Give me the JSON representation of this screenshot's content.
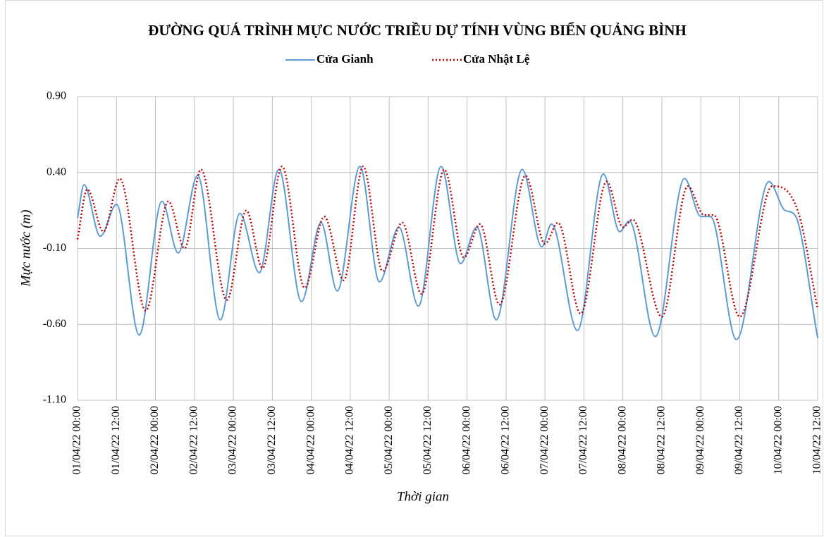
{
  "chart_data": {
    "type": "line",
    "title": "ĐƯỜNG QUÁ TRÌNH MỰC NƯỚC TRIỀU DỰ TÍNH VÙNG BIỂN QUẢNG BÌNH",
    "x_label": "Thời gian",
    "y_label": "Mực nước (m)",
    "xlim": [
      "01/04/22 00:00",
      "10/04/22 12:00"
    ],
    "xticks": [
      "01/04/22 00:00",
      "01/04/22 12:00",
      "02/04/22 00:00",
      "02/04/22 12:00",
      "03/04/22 00:00",
      "03/04/22 12:00",
      "04/04/22 00:00",
      "04/04/22 12:00",
      "05/04/22 00:00",
      "05/04/22 12:00",
      "06/04/22 00:00",
      "06/04/22 12:00",
      "07/04/22 00:00",
      "07/04/22 12:00",
      "08/04/22 00:00",
      "08/04/22 12:00",
      "09/04/22 00:00",
      "09/04/22 12:00",
      "10/04/22 00:00",
      "10/04/22 12:00"
    ],
    "ylim": [
      -1.1,
      0.9
    ],
    "yticks": [
      {
        "value": 0.9,
        "label": "0.90"
      },
      {
        "value": 0.4,
        "label": "0.40"
      },
      {
        "value": -0.1,
        "label": "-0.10"
      },
      {
        "value": -0.6,
        "label": "-0.60"
      },
      {
        "value": -1.1,
        "label": "-1.10"
      }
    ],
    "grid": true,
    "legend": "top",
    "series": [
      {
        "name": "Cửa Gianh",
        "color": "#5b9bd5",
        "style": "solid",
        "x": [
          "01/04/22 00:00",
          "01/04/22 02:00",
          "01/04/22 07:00",
          "01/04/22 12:00",
          "01/04/22 19:00",
          "02/04/22 02:00",
          "02/04/22 07:00",
          "02/04/22 13:00",
          "02/04/22 20:00",
          "03/04/22 02:00",
          "03/04/22 08:00",
          "03/04/22 14:00",
          "03/04/22 21:00",
          "04/04/22 03:00",
          "04/04/22 08:00",
          "04/04/22 15:00",
          "04/04/22 21:00",
          "05/04/22 03:00",
          "05/04/22 09:00",
          "05/04/22 16:00",
          "05/04/22 22:00",
          "06/04/22 03:00",
          "06/04/22 09:00",
          "06/04/22 17:00",
          "06/04/22 23:00",
          "07/04/22 02:00",
          "07/04/22 10:00",
          "07/04/22 18:00",
          "07/04/22 23:00",
          "08/04/22 02:00",
          "08/04/22 10:00",
          "08/04/22 19:00",
          "09/04/22 00:00",
          "09/04/22 03:00",
          "09/04/22 11:00",
          "09/04/22 21:00",
          "10/04/22 02:00",
          "10/04/22 05:00",
          "10/04/22 12:00"
        ],
        "values": [
          0.1,
          0.32,
          -0.02,
          0.19,
          -0.67,
          0.21,
          -0.13,
          0.38,
          -0.57,
          0.13,
          -0.26,
          0.42,
          -0.45,
          0.07,
          -0.38,
          0.44,
          -0.32,
          0.04,
          -0.48,
          0.44,
          -0.2,
          0.04,
          -0.57,
          0.42,
          -0.09,
          0.06,
          -0.64,
          0.39,
          0.01,
          0.08,
          -0.68,
          0.36,
          0.11,
          0.11,
          -0.7,
          0.34,
          0.15,
          0.12,
          -0.69
        ]
      },
      {
        "name": "Cửa Nhật Lệ",
        "color": "#c00000",
        "style": "dotted",
        "x": [
          "01/04/22 00:00",
          "01/04/22 03:00",
          "01/04/22 08:00",
          "01/04/22 13:00",
          "01/04/22 21:00",
          "02/04/22 04:00",
          "02/04/22 09:00",
          "02/04/22 14:00",
          "02/04/22 22:00",
          "03/04/22 04:00",
          "03/04/22 09:00",
          "03/04/22 15:00",
          "03/04/22 22:00",
          "04/04/22 04:00",
          "04/04/22 10:00",
          "04/04/22 16:00",
          "04/04/22 22:00",
          "05/04/22 04:00",
          "05/04/22 10:00",
          "05/04/22 17:00",
          "05/04/22 23:00",
          "06/04/22 04:00",
          "06/04/22 10:00",
          "06/04/22 18:00",
          "07/04/22 00:00",
          "07/04/22 04:00",
          "07/04/22 11:00",
          "07/04/22 19:00",
          "08/04/22 00:00",
          "08/04/22 03:00",
          "08/04/22 12:00",
          "08/04/22 20:00",
          "09/04/22 01:00",
          "09/04/22 04:00",
          "09/04/22 12:00",
          "09/04/22 22:00",
          "10/04/22 06:00",
          "10/04/22 12:00"
        ],
        "values": [
          -0.04,
          0.29,
          0.01,
          0.36,
          -0.51,
          0.21,
          -0.1,
          0.42,
          -0.44,
          0.15,
          -0.23,
          0.44,
          -0.36,
          0.11,
          -0.31,
          0.44,
          -0.25,
          0.07,
          -0.4,
          0.42,
          -0.16,
          0.06,
          -0.47,
          0.38,
          -0.07,
          0.07,
          -0.53,
          0.34,
          0.04,
          0.09,
          -0.55,
          0.31,
          0.12,
          0.12,
          -0.55,
          0.31,
          0.14,
          -0.5
        ]
      }
    ]
  }
}
